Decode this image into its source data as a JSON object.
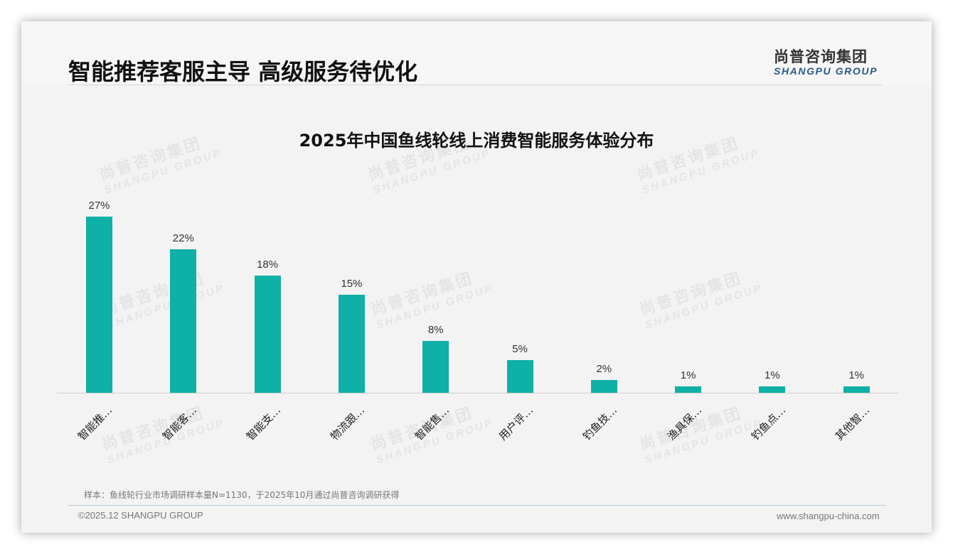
{
  "header": {
    "title": "智能推荐客服主导 高级服务待优化",
    "logo_cn": "尚普咨询集团",
    "logo_en": "SHANGPU GROUP"
  },
  "watermark": {
    "cn": "尚普咨询集团",
    "en": "SHANGPU GROUP"
  },
  "chart_data": {
    "type": "bar",
    "title": "2025年中国鱼线轮线上消费智能服务体验分布",
    "categories": [
      "智能推…",
      "智能客…",
      "智能支…",
      "物流跟…",
      "智能售…",
      "用户评…",
      "钓鱼技…",
      "渔具保…",
      "钓鱼点…",
      "其他智…"
    ],
    "values": [
      27,
      22,
      18,
      15,
      8,
      5,
      2,
      1,
      1,
      1
    ],
    "value_labels": [
      "27%",
      "22%",
      "18%",
      "15%",
      "8%",
      "5%",
      "2%",
      "1%",
      "1%",
      "1%"
    ],
    "unit": "%",
    "xlabel": "",
    "ylabel": "",
    "ylim": [
      0,
      30
    ],
    "grid": false,
    "legend": "none",
    "bar_color": "#0fb0a6"
  },
  "footer": {
    "note": "样本：鱼线轮行业市场调研样本量N=1130，于2025年10月通过尚普咨询调研获得",
    "copyright": "©2025.12 SHANGPU GROUP",
    "website": "www.shangpu-china.com"
  }
}
